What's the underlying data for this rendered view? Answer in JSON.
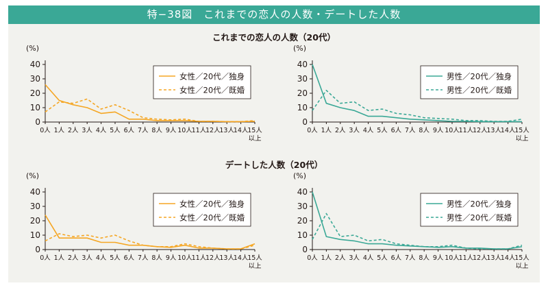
{
  "header": {
    "title": "特−38図　これまでの恋人の人数・デートした人数"
  },
  "sections": [
    {
      "title": "これまでの恋人の人数（20代）"
    },
    {
      "title": "デートした人数（20代）"
    }
  ],
  "chart_data": [
    {
      "type": "line",
      "unit": "(%)",
      "ylim": [
        0,
        40
      ],
      "yticks": [
        0,
        10,
        20,
        30,
        40
      ],
      "categories": [
        "0人",
        "1人",
        "2人",
        "3人",
        "4人",
        "5人",
        "6人",
        "7人",
        "8人",
        "9人",
        "10人",
        "11人",
        "12人",
        "13人",
        "14人",
        "15人\n以上"
      ],
      "series": [
        {
          "name": "女性／20代／独身",
          "color": "#f5a623",
          "dash": false,
          "values": [
            26,
            15,
            12,
            10,
            6,
            7,
            2,
            2,
            1,
            1,
            1,
            0.5,
            0.5,
            0.3,
            0.3,
            0.5
          ]
        },
        {
          "name": "女性／20代／既婚",
          "color": "#f5a623",
          "dash": true,
          "values": [
            7,
            14,
            13,
            16,
            9,
            12,
            8,
            3,
            2,
            1.5,
            2,
            0.5,
            0.5,
            0.3,
            0.3,
            1
          ]
        }
      ]
    },
    {
      "type": "line",
      "unit": "(%)",
      "ylim": [
        0,
        40
      ],
      "yticks": [
        0,
        10,
        20,
        30,
        40
      ],
      "categories": [
        "0人",
        "1人",
        "2人",
        "3人",
        "4人",
        "5人",
        "6人",
        "7人",
        "8人",
        "9人",
        "10人",
        "11人",
        "12人",
        "13人",
        "14人",
        "15人\n以上"
      ],
      "series": [
        {
          "name": "男性／20代／独身",
          "color": "#3aa896",
          "dash": false,
          "values": [
            40,
            13,
            10,
            8,
            4,
            4,
            3,
            2,
            1.5,
            1,
            0.5,
            0.5,
            0.3,
            0.3,
            0.3,
            0.3
          ]
        },
        {
          "name": "男性／20代／既婚",
          "color": "#3aa896",
          "dash": true,
          "values": [
            8,
            22,
            13,
            14,
            8,
            9,
            6,
            5,
            3,
            2.5,
            2,
            1,
            1,
            0.5,
            0.5,
            2
          ]
        }
      ]
    },
    {
      "type": "line",
      "unit": "(%)",
      "ylim": [
        0,
        40
      ],
      "yticks": [
        0,
        10,
        20,
        30,
        40
      ],
      "categories": [
        "0人",
        "1人",
        "2人",
        "3人",
        "4人",
        "5人",
        "6人",
        "7人",
        "8人",
        "9人",
        "10人",
        "11人",
        "12人",
        "13人",
        "14人",
        "15人\n以上"
      ],
      "series": [
        {
          "name": "女性／20代／独身",
          "color": "#f5a623",
          "dash": false,
          "values": [
            24,
            8,
            8,
            8,
            5,
            5,
            3,
            3,
            2,
            1.5,
            3,
            1,
            1,
            0.5,
            0.5,
            4
          ]
        },
        {
          "name": "女性／20代／既婚",
          "color": "#f5a623",
          "dash": true,
          "values": [
            6,
            11,
            9,
            10,
            8,
            10,
            6,
            3,
            2,
            2,
            4,
            2,
            1,
            0.5,
            0.5,
            3
          ]
        }
      ]
    },
    {
      "type": "line",
      "unit": "(%)",
      "ylim": [
        0,
        40
      ],
      "yticks": [
        0,
        10,
        20,
        30,
        40
      ],
      "categories": [
        "0人",
        "1人",
        "2人",
        "3人",
        "4人",
        "5人",
        "6人",
        "7人",
        "8人",
        "9人",
        "10人",
        "11人",
        "12人",
        "13人",
        "14人",
        "15人\n以上"
      ],
      "series": [
        {
          "name": "男性／20代／独身",
          "color": "#3aa896",
          "dash": false,
          "values": [
            40,
            9,
            7,
            6,
            4,
            4,
            3,
            2.5,
            2,
            1.5,
            2,
            1,
            1,
            0.5,
            0.5,
            2
          ]
        },
        {
          "name": "男性／20代／既婚",
          "color": "#3aa896",
          "dash": true,
          "values": [
            7,
            25,
            9,
            10,
            6,
            7,
            4,
            3,
            2,
            2,
            3,
            1,
            0.5,
            0.5,
            0.5,
            3
          ]
        }
      ]
    }
  ]
}
